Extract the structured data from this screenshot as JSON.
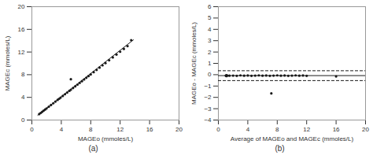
{
  "chart_data": [
    {
      "type": "scatter",
      "xlabel": "MAGEo (mmoles/L)",
      "ylabel": "MAGEc (mmoles/L)",
      "caption": "(a)",
      "xlim": [
        0,
        20
      ],
      "ylim": [
        0,
        20
      ],
      "xticks": [
        0,
        4,
        8,
        12,
        16,
        20
      ],
      "yticks": [
        0,
        4,
        8,
        12,
        16,
        20
      ],
      "series": [
        {
          "type": "line",
          "color": "#1a1a1a",
          "line_style": "solid",
          "x": [
            0.8,
            13.8
          ],
          "values": [
            0.85,
            14.15
          ]
        },
        {
          "type": "scatter",
          "color": "#1a1a1a",
          "x": [
            1.0,
            1.2,
            1.4,
            1.6,
            1.8,
            2.0,
            2.3,
            2.6,
            2.9,
            3.2,
            3.5,
            3.7,
            3.9,
            4.2,
            4.5,
            4.8,
            5.1,
            5.3,
            5.6,
            5.9,
            6.2,
            6.5,
            6.8,
            7.1,
            7.4,
            7.7,
            8.0,
            8.4,
            8.8,
            9.2,
            9.6,
            10.0,
            10.5,
            11.0,
            11.5,
            12.0,
            12.5,
            13.0,
            13.5
          ],
          "values": [
            1.05,
            1.25,
            1.45,
            1.65,
            1.85,
            2.05,
            2.35,
            2.65,
            2.95,
            3.25,
            3.55,
            3.75,
            3.95,
            4.25,
            4.55,
            4.85,
            5.15,
            5.35,
            5.65,
            5.95,
            6.25,
            6.55,
            6.85,
            7.15,
            7.45,
            7.75,
            8.05,
            8.45,
            8.85,
            9.25,
            9.65,
            10.05,
            10.55,
            11.05,
            11.55,
            12.05,
            12.55,
            13.05,
            14.1
          ]
        },
        {
          "type": "scatter",
          "color": "#1a1a1a",
          "x": [
            5.3
          ],
          "values": [
            7.2
          ]
        }
      ]
    },
    {
      "type": "scatter",
      "xlabel": "Average of MAGEo and MAGEc (mmoles/L)",
      "ylabel": "MAGEo - MAGEc (mmoles/L)",
      "caption": "(b)",
      "xlim": [
        0,
        20
      ],
      "ylim": [
        -4,
        6
      ],
      "xticks": [
        0,
        4,
        8,
        12,
        16,
        20
      ],
      "yticks": [
        -4,
        -3,
        -2,
        -1,
        0,
        1,
        2,
        3,
        4,
        5,
        6
      ],
      "series": [
        {
          "type": "scatter",
          "color": "#1a1a1a",
          "x": [
            1.02,
            1.05,
            1.08,
            1.12,
            1.18,
            1.5,
            2.0,
            2.5,
            3.0,
            3.5,
            4.0,
            4.5,
            5.0,
            5.5,
            6.0,
            6.5,
            7.0,
            7.5,
            8.0,
            8.5,
            9.0,
            9.5,
            10.0,
            10.5,
            11.0,
            11.5,
            12.0,
            16.0
          ],
          "values": [
            -0.08,
            -0.1,
            -0.05,
            -0.12,
            -0.07,
            -0.09,
            -0.08,
            -0.1,
            -0.06,
            -0.09,
            -0.07,
            -0.1,
            -0.08,
            -0.06,
            -0.09,
            -0.07,
            -0.1,
            -0.08,
            -0.06,
            -0.09,
            -0.07,
            -0.1,
            -0.08,
            -0.06,
            -0.09,
            -0.07,
            -0.1,
            -0.15
          ]
        },
        {
          "type": "scatter",
          "color": "#1a1a1a",
          "x": [
            7.2
          ],
          "values": [
            -1.65
          ]
        },
        {
          "type": "hline",
          "color": "#1a1a1a",
          "line_style": "solid",
          "values": [
            -0.08
          ]
        },
        {
          "type": "hline",
          "color": "#1a1a1a",
          "line_style": "dashed",
          "values": [
            0.35
          ]
        },
        {
          "type": "hline",
          "color": "#1a1a1a",
          "line_style": "dashed",
          "values": [
            -0.52
          ]
        }
      ]
    }
  ]
}
